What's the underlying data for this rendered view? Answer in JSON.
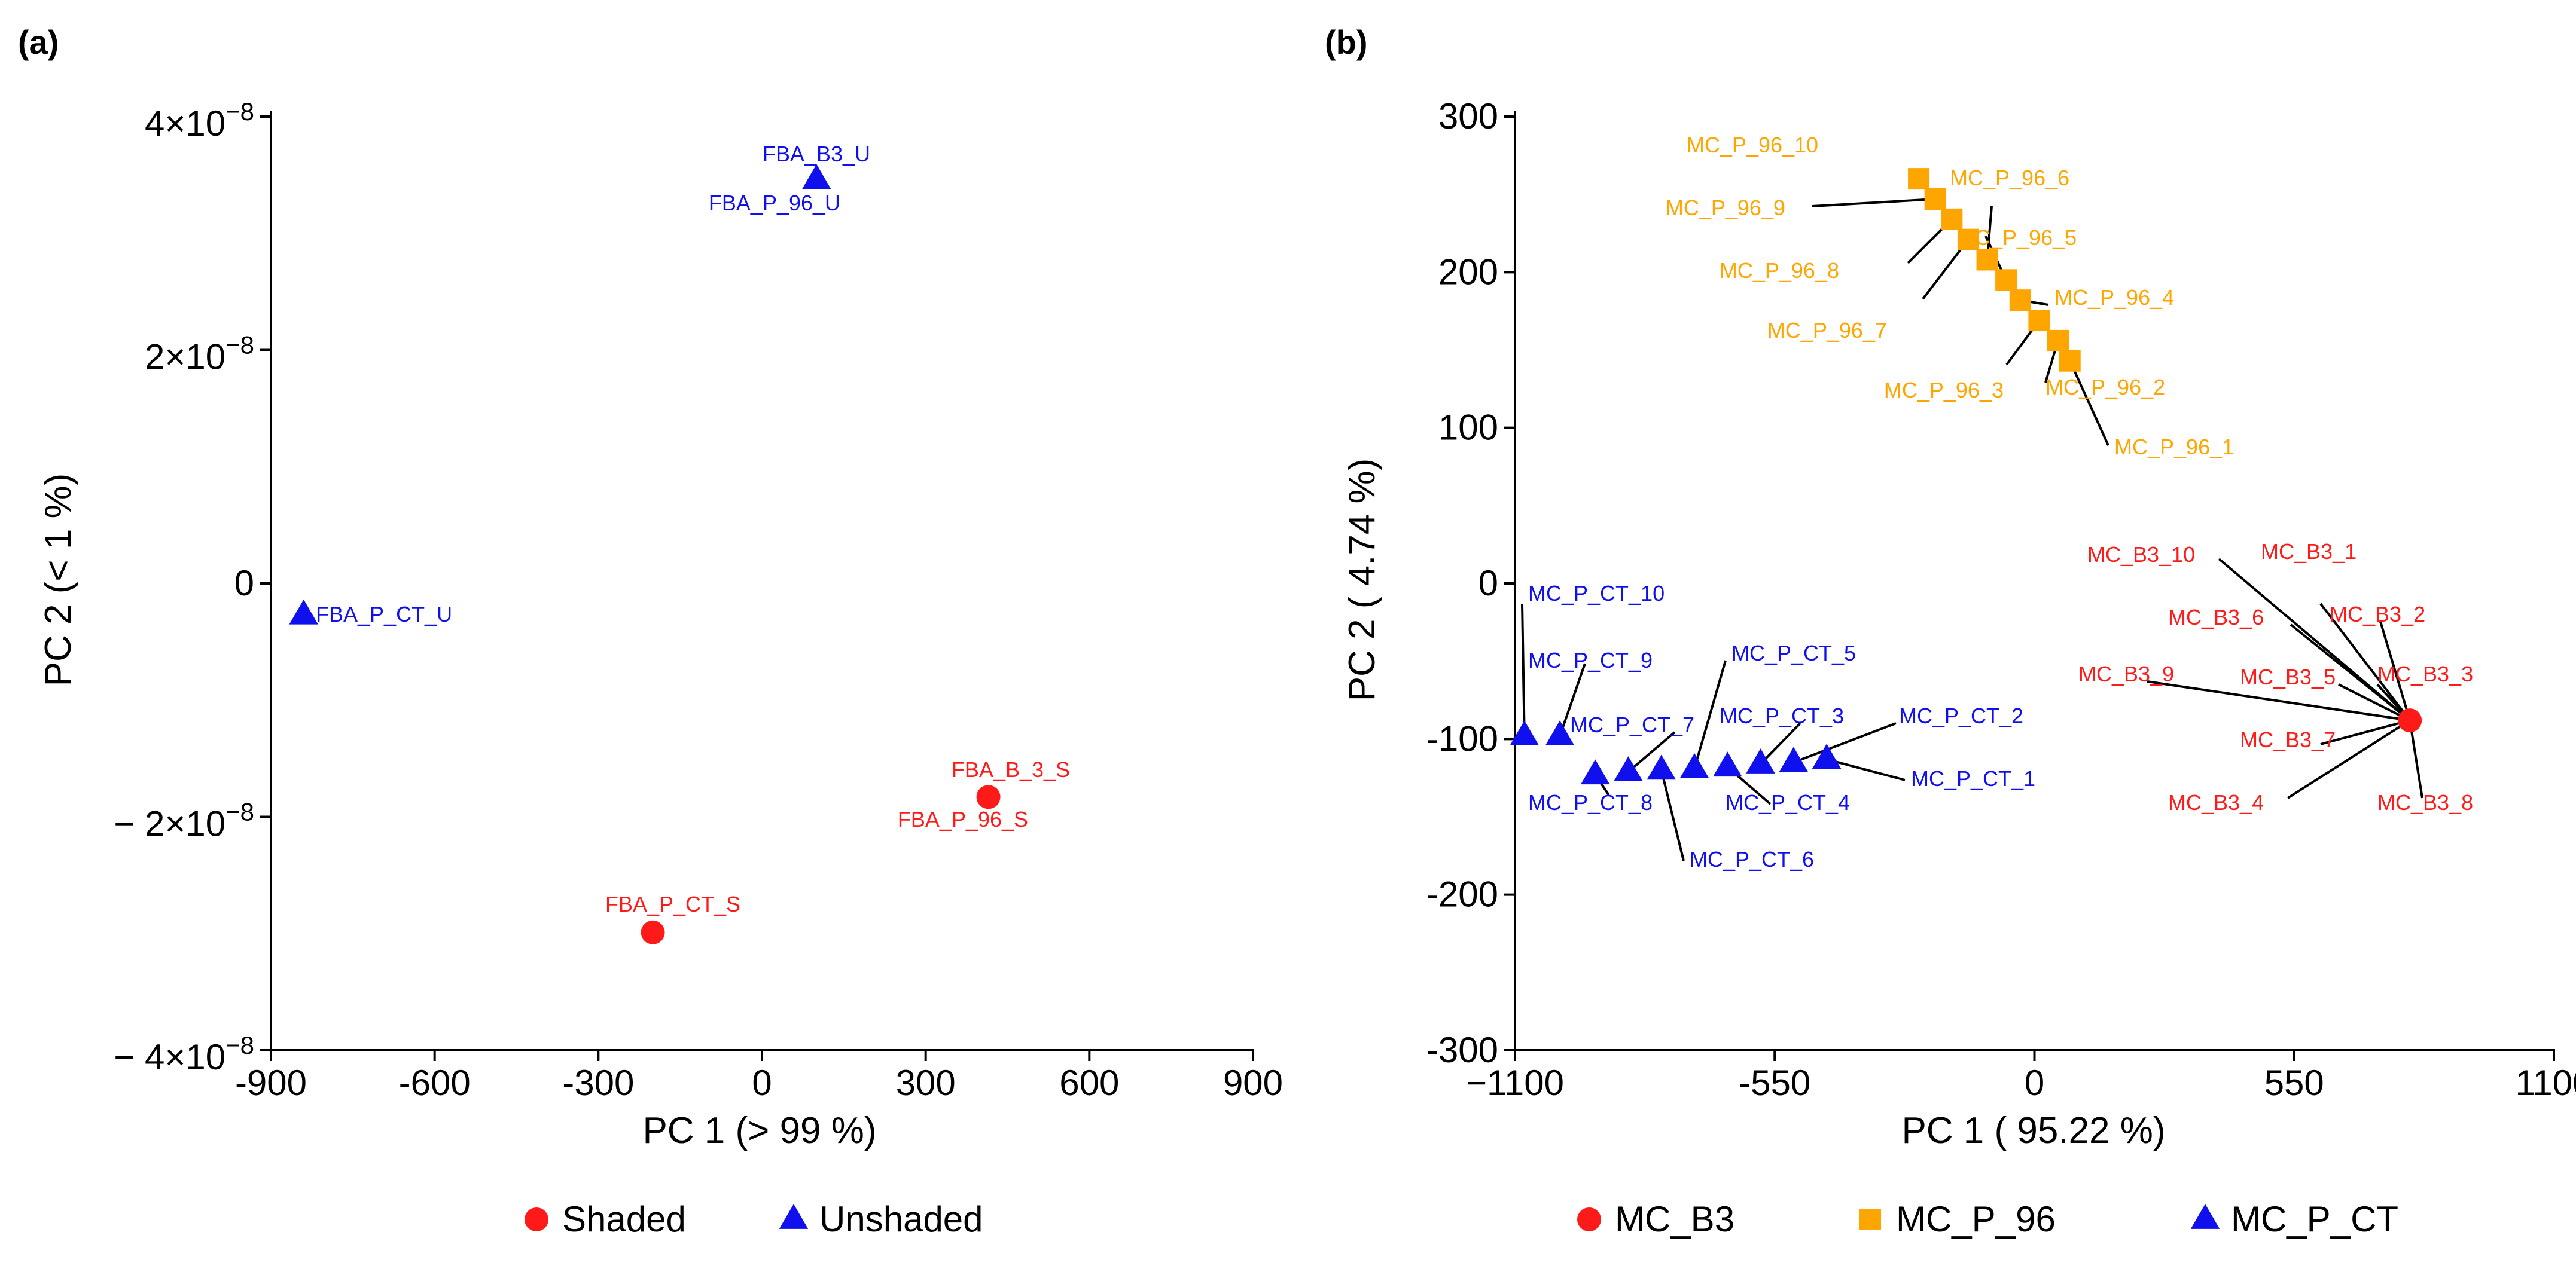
{
  "colors": {
    "red": "#ff1a1a",
    "orange": "#ffa500",
    "blue": "#1010ee",
    "axis": "#000000"
  },
  "chart_data": [
    {
      "panel": "(a)",
      "type": "scatter",
      "xlabel": "PC 1  (> 99 %)",
      "ylabel": "PC 2  (< 1 %)",
      "xlim": [
        -900,
        900
      ],
      "ylim": [
        -4e-08,
        4e-08
      ],
      "xticks": [
        -900,
        -600,
        -300,
        0,
        300,
        600,
        900
      ],
      "xtick_labels": [
        "-900",
        "-600",
        "-300",
        "0",
        "300",
        "600",
        "900"
      ],
      "yticks": [
        4e-08,
        2e-08,
        0,
        -2e-08,
        -4e-08
      ],
      "ytick_labels": [
        {
          "base": "4×10",
          "exp": "−8"
        },
        {
          "base": "2×10",
          "exp": "−8"
        },
        {
          "base": "0",
          "exp": ""
        },
        {
          "base": "− 2×10",
          "exp": "−8"
        },
        {
          "base": "− 4×10",
          "exp": "−8"
        }
      ],
      "legend": "bottom",
      "series": [
        {
          "name": "Shaded",
          "marker": "circle",
          "color": "#ff1a1a",
          "points": [
            {
              "x": 415,
              "y": -1.83e-08,
              "labels": [
                "FBA_B_3_S",
                "FBA_P_96_S"
              ]
            },
            {
              "x": -200,
              "y": -2.99e-08,
              "labels": [
                "FBA_P_CT_S"
              ]
            }
          ]
        },
        {
          "name": "Unshaded",
          "marker": "triangle",
          "color": "#1010ee",
          "points": [
            {
              "x": 100,
              "y": 3.46e-08,
              "labels": [
                "FBA_B3_U",
                "FBA_P_96_U"
              ]
            },
            {
              "x": -840,
              "y": -2.7e-09,
              "labels": [
                "FBA_P_CT_U"
              ]
            }
          ]
        }
      ]
    },
    {
      "panel": "(b)",
      "type": "scatter",
      "xlabel": "PC 1  ( 95.22 %)",
      "ylabel": "PC 2  ( 4.74 %)",
      "xlim": [
        -1100,
        1100
      ],
      "ylim": [
        -300,
        300
      ],
      "xticks": [
        -1100,
        -550,
        0,
        550,
        1100
      ],
      "xtick_labels": [
        "−1100",
        "-550",
        "0",
        "550",
        "1100"
      ],
      "yticks": [
        300,
        200,
        100,
        0,
        -100,
        -200,
        -300
      ],
      "ytick_labels": [
        "300",
        "200",
        "100",
        "0",
        "-100",
        "-200",
        "-300"
      ],
      "legend": "bottom",
      "series": [
        {
          "name": "MC_B3",
          "marker": "circle",
          "color": "#ff1a1a",
          "points": [
            {
              "x": 795,
              "y": -88,
              "labels": [
                "MC_B3_1",
                "MC_B3_2",
                "MC_B3_3",
                "MC_B3_4",
                "MC_B3_5",
                "MC_B3_6",
                "MC_B3_7",
                "MC_B3_8",
                "MC_B3_9",
                "MC_B3_10"
              ]
            }
          ]
        },
        {
          "name": "MC_P_96",
          "marker": "square",
          "color": "#ffa500",
          "points": [
            {
              "x": 75,
              "y": 143,
              "labels": [
                "MC_P_96_1"
              ]
            },
            {
              "x": 50,
              "y": 156,
              "labels": [
                "MC_P_96_2"
              ]
            },
            {
              "x": 10,
              "y": 169,
              "labels": [
                "MC_P_96_3"
              ]
            },
            {
              "x": -30,
              "y": 182,
              "labels": [
                "MC_P_96_4"
              ]
            },
            {
              "x": -60,
              "y": 195,
              "labels": [
                "MC_P_96_5"
              ]
            },
            {
              "x": -100,
              "y": 208,
              "labels": [
                "MC_P_96_6"
              ]
            },
            {
              "x": -140,
              "y": 221,
              "labels": [
                "MC_P_96_7"
              ]
            },
            {
              "x": -175,
              "y": 234,
              "labels": [
                "MC_P_96_8"
              ]
            },
            {
              "x": -210,
              "y": 247,
              "labels": [
                "MC_P_96_9"
              ]
            },
            {
              "x": -245,
              "y": 260,
              "labels": [
                "MC_P_96_10"
              ]
            }
          ]
        },
        {
          "name": "MC_P_CT",
          "marker": "triangle",
          "color": "#1010ee",
          "points": [
            {
              "x": -440,
              "y": -113,
              "labels": [
                "MC_P_CT_1"
              ]
            },
            {
              "x": -510,
              "y": -115,
              "labels": [
                "MC_P_CT_2"
              ]
            },
            {
              "x": -580,
              "y": -116,
              "labels": [
                "MC_P_CT_3"
              ]
            },
            {
              "x": -650,
              "y": -118,
              "labels": [
                "MC_P_CT_4"
              ]
            },
            {
              "x": -720,
              "y": -119,
              "labels": [
                "MC_P_CT_5"
              ]
            },
            {
              "x": -790,
              "y": -120,
              "labels": [
                "MC_P_CT_6"
              ]
            },
            {
              "x": -860,
              "y": -121,
              "labels": [
                "MC_P_CT_7"
              ]
            },
            {
              "x": -930,
              "y": -123,
              "labels": [
                "MC_P_CT_8"
              ]
            },
            {
              "x": -1005,
              "y": -98,
              "labels": [
                "MC_P_CT_9"
              ]
            },
            {
              "x": -1080,
              "y": -98,
              "labels": [
                "MC_P_CT_10"
              ]
            }
          ]
        }
      ]
    }
  ]
}
